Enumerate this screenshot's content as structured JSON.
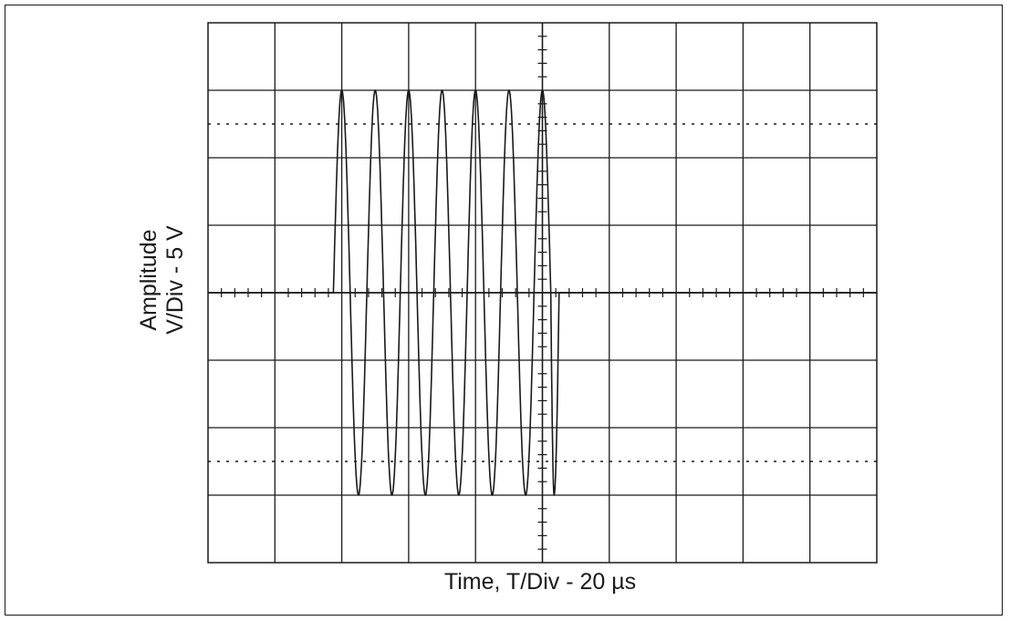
{
  "chart_data": {
    "type": "line",
    "title": "",
    "xlabel": "Time, T/Div - 20 µs",
    "ylabel_lines": [
      "Amplitude",
      "V/Div - 5 V"
    ],
    "grid": true,
    "x_divisions": 10,
    "y_divisions": 8,
    "xlim": [
      0,
      200
    ],
    "ylim": [
      -20,
      20
    ],
    "x_units": "µs",
    "y_units": "V",
    "reference_lines_dotted_y": [
      12.5,
      -12.5
    ],
    "series": [
      {
        "x": [
          0,
          36.5,
          37.5,
          40.0,
          42.5,
          45.0,
          47.5,
          50.0,
          52.5,
          55.0,
          57.5,
          60.0,
          62.5,
          65.0,
          67.5,
          70.0,
          72.5,
          75.0,
          77.5,
          80.0,
          82.5,
          85.0,
          87.5,
          90.0,
          92.5,
          95.0,
          97.5,
          100.0,
          102.5,
          103.5,
          105.0,
          200
        ],
        "y": [
          0,
          0,
          0,
          15,
          0,
          -15,
          0,
          15,
          0,
          -15,
          0,
          15,
          0,
          -15,
          0,
          15,
          0,
          -15,
          0,
          15,
          0,
          -15,
          0,
          15,
          0,
          -15,
          0,
          15,
          0,
          -15,
          0,
          0
        ]
      }
    ],
    "annotations": []
  },
  "colors": {
    "trace": "#1a1a1a",
    "grid": "#1a1a1a",
    "background": "#ffffff"
  }
}
